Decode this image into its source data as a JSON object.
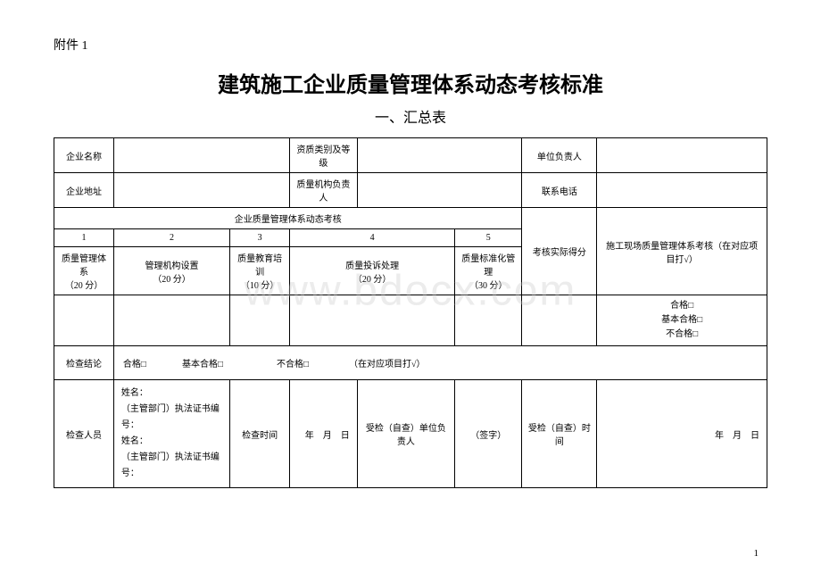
{
  "attachment_label": "附件 1",
  "title": "建筑施工企业质量管理体系动态考核标准",
  "subtitle": "一、汇总表",
  "header": {
    "company_name_label": "企业名称",
    "qualification_label": "资质类别及等级",
    "unit_leader_label": "单位负责人",
    "company_address_label": "企业地址",
    "quality_org_leader_label": "质量机构负责人",
    "contact_phone_label": "联系电话"
  },
  "assessment": {
    "section_title": "企业质量管理体系动态考核",
    "actual_score_label": "考核实际得分",
    "site_assessment_label": "施工现场质量管理体系考核（在对应项目打√）",
    "columns": [
      {
        "num": "1",
        "label": "质量管理体系",
        "score": "（20 分）"
      },
      {
        "num": "2",
        "label": "管理机构设置",
        "score": "（20 分）"
      },
      {
        "num": "3",
        "label": "质量教育培训",
        "score": "（10 分）"
      },
      {
        "num": "4",
        "label": "质量投诉处理",
        "score": "（20 分）"
      },
      {
        "num": "5",
        "label": "质量标准化管理",
        "score": "（30 分）"
      }
    ]
  },
  "result": {
    "pass": "合格□",
    "basic_pass": "基本合格□",
    "fail": "不合格□"
  },
  "conclusion": {
    "label": "检查结论",
    "options_text": "合格□　　　　基本合格□　　　　　　不合格□　　　　　（在对应项目打√）"
  },
  "inspector": {
    "label": "检查人员",
    "name_label": "姓名：",
    "cert_label": "（主管部门）执法证书编号：",
    "check_time_label": "检查时间",
    "date_text": "年　月　日",
    "inspected_unit_label": "受检（自查）单位负责人",
    "signature_label": "（签字）",
    "inspected_time_label": "受检（自查）时间"
  },
  "watermark": "www.bdocx.com",
  "page_number": "1"
}
